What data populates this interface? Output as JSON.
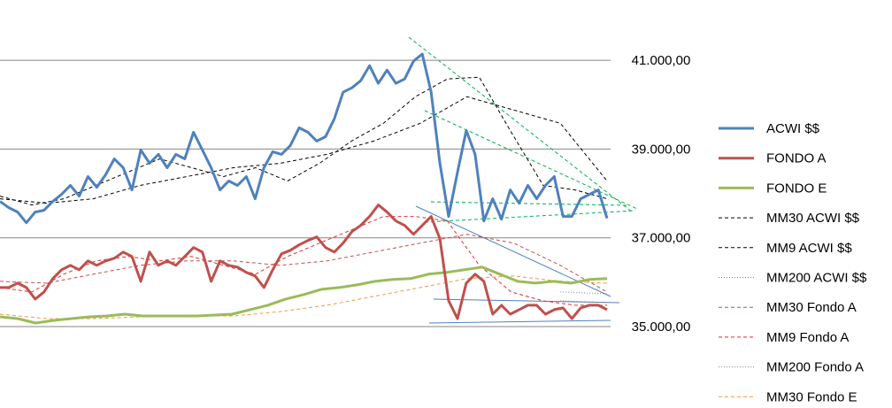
{
  "chart_data": {
    "type": "line",
    "ylim": [
      35000,
      42000
    ],
    "yticks": [
      {
        "value": 35000,
        "label": "35.000,00"
      },
      {
        "value": 37000,
        "label": "37.000,00"
      },
      {
        "value": 39000,
        "label": "39.000,00"
      },
      {
        "value": 41000,
        "label": "41.000,00"
      }
    ],
    "grid": true,
    "legend": "right",
    "series": [
      {
        "name": "ACWI $$",
        "color": "#4f81bd",
        "width": 3,
        "dash": "solid",
        "values": [
          37820,
          37680,
          37580,
          37340,
          37580,
          37620,
          37820,
          37980,
          38180,
          37940,
          38380,
          38140,
          38420,
          38780,
          38580,
          38080,
          38980,
          38680,
          38880,
          38580,
          38880,
          38780,
          39380,
          38980,
          38580,
          38080,
          38280,
          38180,
          38380,
          37880,
          38580,
          38940,
          38880,
          39080,
          39480,
          39380,
          39180,
          39280,
          39680,
          40280,
          40380,
          40540,
          40880,
          40480,
          40780,
          40480,
          40580,
          40980,
          41140,
          40280,
          38680,
          37480,
          38480,
          39420,
          38880,
          37380,
          37880,
          37420,
          38080,
          37780,
          38180,
          37880,
          38180,
          38380,
          37480,
          37480,
          37880,
          37980,
          38080,
          37440
        ]
      },
      {
        "name": "FONDO A",
        "color": "#c0504d",
        "width": 3,
        "dash": "solid",
        "values": [
          35880,
          35880,
          35980,
          35880,
          35620,
          35780,
          36080,
          36280,
          36380,
          36280,
          36480,
          36380,
          36480,
          36540,
          36680,
          36580,
          36020,
          36680,
          36380,
          36480,
          36380,
          36580,
          36780,
          36680,
          36020,
          36480,
          36380,
          36340,
          36220,
          36140,
          35880,
          36280,
          36640,
          36720,
          36840,
          36940,
          37020,
          36780,
          36680,
          36880,
          37140,
          37280,
          37480,
          37740,
          37580,
          37380,
          37280,
          37080,
          37280,
          37480,
          36980,
          35580,
          35180,
          35980,
          36180,
          36020,
          35280,
          35480,
          35280,
          35380,
          35480,
          35480,
          35280,
          35380,
          35420,
          35180,
          35420,
          35480,
          35480,
          35380
        ]
      },
      {
        "name": "FONDO E",
        "color": "#9bbb59",
        "width": 3,
        "dash": "solid",
        "values": [
          35220,
          35180,
          35080,
          35140,
          35180,
          35220,
          35240,
          35280,
          35240,
          35240,
          35240,
          35240,
          35260,
          35280,
          35380,
          35480,
          35620,
          35720,
          35840,
          35880,
          35940,
          36020,
          36060,
          36080,
          36180,
          36220,
          36280,
          36340,
          36180,
          36020,
          35980,
          36020,
          35980,
          36060,
          36080
        ]
      },
      {
        "name": "MM30 ACWI $$",
        "color": "#000000",
        "width": 1,
        "dash": "dashed",
        "values": [
          37880,
          37780,
          37880,
          38180,
          38380,
          38580,
          38680,
          38880,
          39180,
          39580,
          40180,
          39880,
          39580,
          38280
        ]
      },
      {
        "name": "MM9 ACWI $$",
        "color": "#000000",
        "width": 1,
        "dash": "dashed",
        "values": [
          37940,
          37740,
          37880,
          38180,
          38480,
          38780,
          38580,
          38380,
          38580,
          38280,
          38680,
          39180,
          39580,
          40180,
          40580,
          40620,
          39380,
          38180,
          38080,
          37880
        ]
      },
      {
        "name": "MM200 ACWI $$",
        "color": "#7f7f7f",
        "width": 1,
        "dash": "dotted",
        "values": [
          null,
          null,
          null,
          null,
          null,
          null,
          null,
          null,
          null,
          null,
          null,
          null,
          35780,
          35740
        ]
      },
      {
        "name": "MM30 Fondo A",
        "color": "#c0504d",
        "width": 1,
        "dash": "dashed",
        "values": [
          36020,
          35980,
          36180,
          36380,
          36480,
          36480,
          36380,
          36480,
          36680,
          36880,
          37080,
          36880,
          36380,
          35780
        ]
      },
      {
        "name": "MM9 Fondo A",
        "color": "#e03030",
        "width": 1,
        "dash": "dashed",
        "values": [
          35880,
          35780,
          36180,
          36480,
          36580,
          36480,
          36580,
          36380,
          36180,
          36580,
          36880,
          37180,
          37480,
          37480,
          37380,
          36380,
          35780,
          35580,
          35480,
          35480
        ]
      },
      {
        "name": "MM200 Fondo A",
        "color": "#7f7f7f",
        "width": 1,
        "dash": "dotted",
        "values": [
          null,
          null,
          null,
          null,
          null,
          null,
          null,
          null,
          null,
          null,
          null,
          null,
          35580,
          35540
        ]
      },
      {
        "name": "MM30 Fondo E",
        "color": "#f79646",
        "width": 1,
        "dash": "dashed",
        "values": [
          35280,
          35180,
          35180,
          35220,
          35240,
          35240,
          35340,
          35480,
          35680,
          35880,
          36080,
          36140,
          36020,
          35980
        ]
      }
    ]
  }
}
